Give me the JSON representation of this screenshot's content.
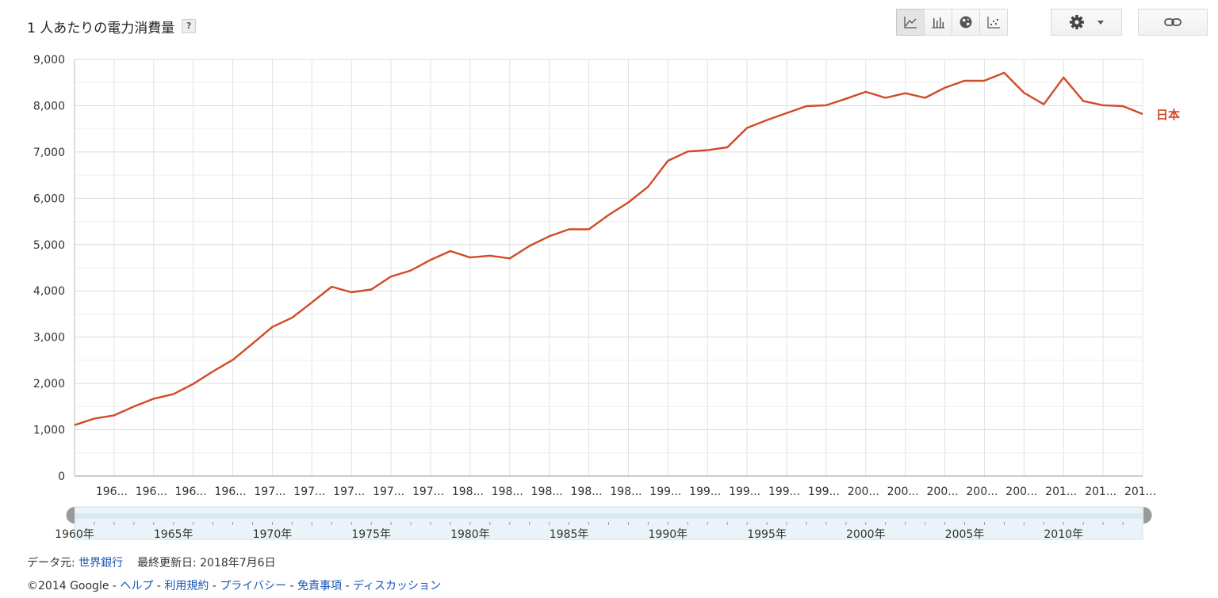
{
  "header": {
    "title": "1 人あたりの電力消費量",
    "help_label": "?"
  },
  "toolbar": {
    "buttons": [
      {
        "icon": "line-chart-icon",
        "active": true
      },
      {
        "icon": "bar-chart-icon",
        "active": false
      },
      {
        "icon": "globe-map-icon",
        "active": false
      },
      {
        "icon": "scatter-chart-icon",
        "active": false
      }
    ],
    "settings_icon": "gear-icon",
    "dropdown_icon": "caret-down-icon",
    "link_icon": "link-icon"
  },
  "chart_data": {
    "type": "line",
    "title": "1 人あたりの電力消費量",
    "x": [
      1960,
      1961,
      1962,
      1963,
      1964,
      1965,
      1966,
      1967,
      1968,
      1969,
      1970,
      1971,
      1972,
      1973,
      1974,
      1975,
      1976,
      1977,
      1978,
      1979,
      1980,
      1981,
      1982,
      1983,
      1984,
      1985,
      1986,
      1987,
      1988,
      1989,
      1990,
      1991,
      1992,
      1993,
      1994,
      1995,
      1996,
      1997,
      1998,
      1999,
      2000,
      2001,
      2002,
      2003,
      2004,
      2005,
      2006,
      2007,
      2008,
      2009,
      2010,
      2011,
      2012,
      2013,
      2014
    ],
    "series": [
      {
        "name": "日本",
        "color": "#d14a26",
        "values": [
          1100,
          1240,
          1310,
          1500,
          1670,
          1770,
          1990,
          2260,
          2510,
          2860,
          3220,
          3420,
          3750,
          4090,
          3970,
          4030,
          4310,
          4440,
          4670,
          4860,
          4720,
          4760,
          4700,
          4970,
          5180,
          5330,
          5330,
          5640,
          5910,
          6250,
          6810,
          7010,
          7040,
          7100,
          7520,
          7690,
          7840,
          7990,
          8010,
          8150,
          8300,
          8170,
          8270,
          8170,
          8390,
          8540,
          8540,
          8710,
          8280,
          8030,
          8610,
          8100,
          8010,
          7990,
          7820
        ]
      }
    ],
    "ylim": [
      0,
      9000
    ],
    "yticks": [
      0,
      1000,
      2000,
      3000,
      4000,
      5000,
      6000,
      7000,
      8000,
      9000
    ],
    "ytick_labels": [
      "0",
      "1,000",
      "2,000",
      "3,000",
      "4,000",
      "5,000",
      "6,000",
      "7,000",
      "8,000",
      "9,000"
    ],
    "xtick_labels": [
      "196...",
      "196...",
      "196...",
      "196...",
      "197...",
      "197...",
      "197...",
      "197...",
      "197...",
      "198...",
      "198...",
      "198...",
      "198...",
      "198...",
      "199...",
      "199...",
      "199...",
      "199...",
      "199...",
      "200...",
      "200...",
      "200...",
      "200...",
      "200...",
      "201...",
      "201...",
      "201..."
    ],
    "grid": true,
    "legend": "right"
  },
  "range_slider": {
    "labels": [
      "1960年",
      "1965年",
      "1970年",
      "1975年",
      "1980年",
      "1985年",
      "1990年",
      "1995年",
      "2000年",
      "2005年",
      "2010年"
    ],
    "label_years": [
      1960,
      1965,
      1970,
      1975,
      1980,
      1985,
      1990,
      1995,
      2000,
      2005,
      2010
    ],
    "min_year": 1960,
    "max_year": 2014,
    "selected": [
      1960,
      2014
    ]
  },
  "footer": {
    "source_prefix": "データ元: ",
    "source_link": "世界銀行",
    "updated": "最終更新日: 2018年7月6日",
    "copyright": "©2014 Google - ",
    "links": [
      "ヘルプ",
      "利用規約",
      "プライバシー",
      "免責事項",
      "ディスカッション"
    ],
    "separator": " - "
  },
  "colors": {
    "series": "#d14a26",
    "grid": "#e3e3e3",
    "link": "#1a55b8",
    "slider_bg": "#eaf4f8"
  }
}
